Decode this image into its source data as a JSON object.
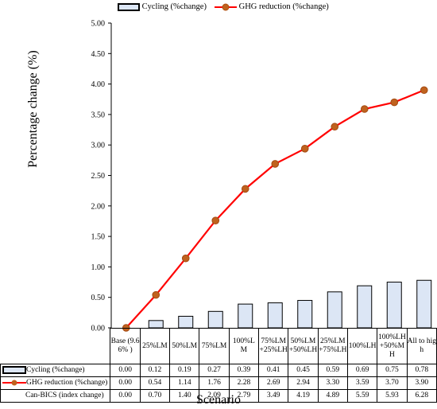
{
  "chart_data": {
    "type": "bar+line",
    "categories": [
      "Base (9.66% )",
      "25%LM",
      "50%LM",
      "75%LM",
      "100%LM",
      "75%LM+25%LH",
      "50%LM+50%LH",
      "25%LM+75%LH",
      "100%LH",
      "100%LH+50%MH",
      "All to high"
    ],
    "series": [
      {
        "name": "Cycling (%change)",
        "type": "bar",
        "color": "#dce6f5",
        "values": [
          0.0,
          0.12,
          0.19,
          0.27,
          0.39,
          0.41,
          0.45,
          0.59,
          0.69,
          0.75,
          0.78
        ]
      },
      {
        "name": "GHG reduction (%change)",
        "type": "line",
        "color": "#ff0000",
        "marker_color": "#c0621e",
        "values": [
          0.0,
          0.54,
          1.14,
          1.76,
          2.28,
          2.69,
          2.94,
          3.3,
          3.59,
          3.7,
          3.9
        ]
      }
    ],
    "table_rows": [
      {
        "label": "Cycling (%change)",
        "values": [
          "0.00",
          "0.12",
          "0.19",
          "0.27",
          "0.39",
          "0.41",
          "0.45",
          "0.59",
          "0.69",
          "0.75",
          "0.78"
        ]
      },
      {
        "label": "GHG reduction (%change)",
        "values": [
          "0.00",
          "0.54",
          "1.14",
          "1.76",
          "2.28",
          "2.69",
          "2.94",
          "3.30",
          "3.59",
          "3.70",
          "3.90"
        ]
      },
      {
        "label": "Can-BICS (index change)",
        "values": [
          "0.00",
          "0.70",
          "1.40",
          "2.09",
          "2.79",
          "3.49",
          "4.19",
          "4.89",
          "5.59",
          "5.93",
          "6.28"
        ]
      }
    ],
    "ylim": [
      0,
      5
    ],
    "yticks": [
      "0.00",
      "0.50",
      "1.00",
      "1.50",
      "2.00",
      "2.50",
      "3.00",
      "3.50",
      "4.00",
      "4.50",
      "5.00"
    ],
    "ylabel": "Percentage change (%)",
    "xlabel": "Scenario",
    "grid": false,
    "legend": "top"
  }
}
